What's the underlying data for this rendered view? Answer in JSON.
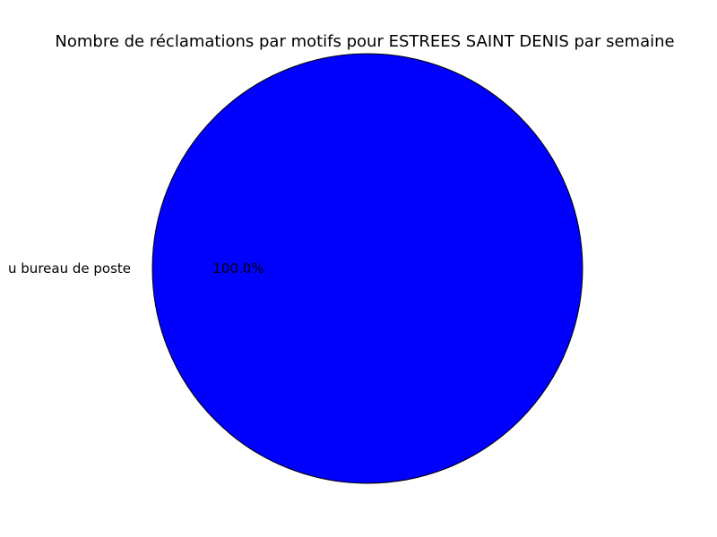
{
  "chart_data": {
    "type": "pie",
    "title": "Nombre de réclamations par motifs pour ESTREES SAINT DENIS par semaine",
    "slices": [
      {
        "label": "u bureau de poste",
        "value": 100.0,
        "percent_label": "100.0%",
        "color": "#0000ff"
      }
    ],
    "edge_color": "#000000",
    "background": "#ffffff"
  }
}
